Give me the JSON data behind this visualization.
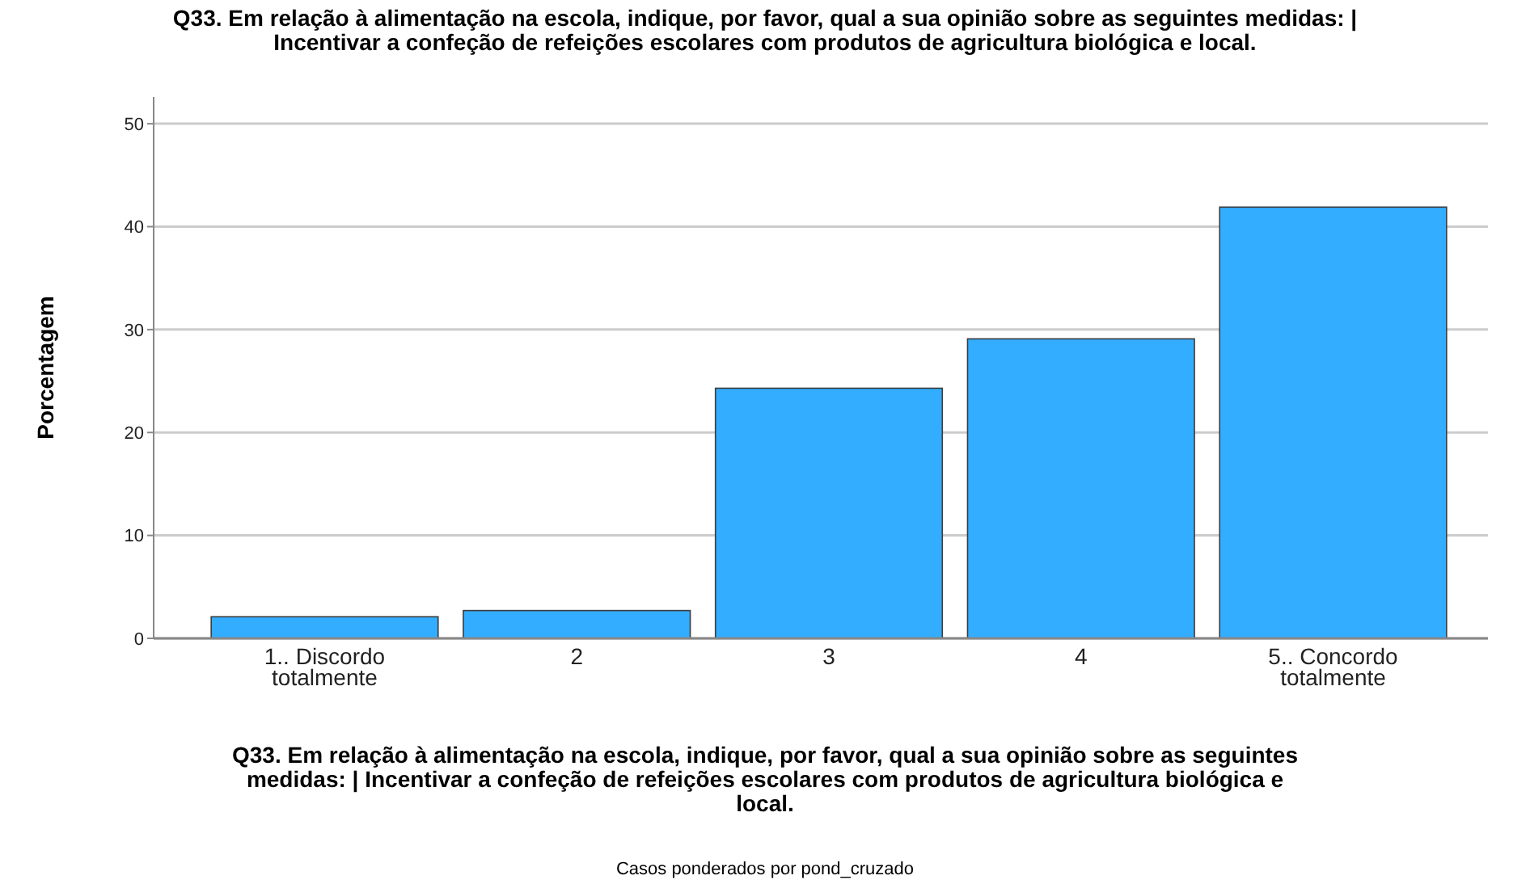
{
  "chart_data": {
    "type": "bar",
    "title": "Q33. Em relação à alimentação na escola, indique, por favor, qual a sua opinião sobre as seguintes medidas: | Incentivar a confeção de refeições escolares com produtos de agricultura biológica e local.",
    "xlabel": "Q33. Em relação à alimentação na escola, indique, por favor, qual a sua opinião sobre as seguintes medidas: | Incentivar a confeção de refeições escolares com produtos de agricultura biológica e local.",
    "ylabel": "Porcentagem",
    "annotations": [
      "Casos ponderados por pond_cruzado"
    ],
    "categories": [
      "1.. Discordo totalmente",
      "2",
      "3",
      "4",
      "5.. Concordo totalmente"
    ],
    "values": [
      2.1,
      2.7,
      24.3,
      29.1,
      41.9
    ],
    "color": "#33adff",
    "ylim": [
      0,
      52.6
    ],
    "yticks": [
      0,
      10,
      20,
      30,
      40,
      50
    ],
    "grid": "y"
  }
}
